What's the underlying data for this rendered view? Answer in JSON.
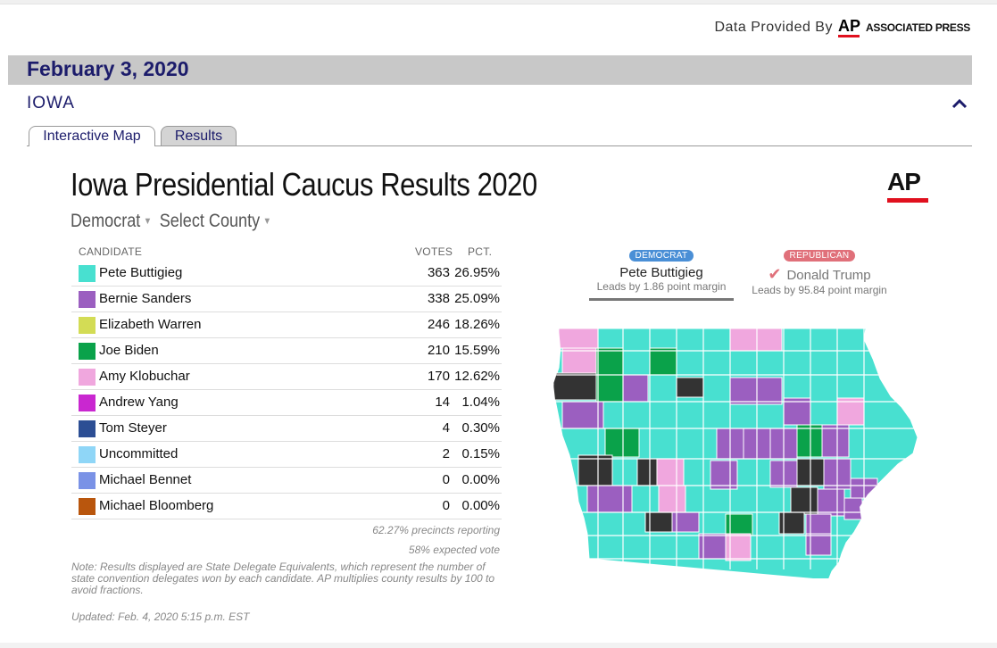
{
  "provider": {
    "label": "Data Provided By",
    "logo": "AP",
    "name": "ASSOCIATED PRESS"
  },
  "date_bar": {
    "date": "February 3, 2020"
  },
  "state": {
    "name": "IOWA",
    "collapse_icon": "chevron-up-icon"
  },
  "tabs": [
    {
      "label": "Interactive Map",
      "active": true
    },
    {
      "label": "Results",
      "active": false
    }
  ],
  "widget": {
    "title": "Iowa Presidential Caucus Results 2020",
    "logo": "AP",
    "party_select": "Democrat",
    "county_select": "Select County"
  },
  "table": {
    "headers": {
      "candidate": "CANDIDATE",
      "votes": "VOTES",
      "pct": "PCT."
    },
    "rows": [
      {
        "name": "Pete Buttigieg",
        "votes": "363",
        "pct": "26.95%",
        "color": "#48e0d0"
      },
      {
        "name": "Bernie Sanders",
        "votes": "338",
        "pct": "25.09%",
        "color": "#9b5fc0"
      },
      {
        "name": "Elizabeth Warren",
        "votes": "246",
        "pct": "18.26%",
        "color": "#d3dc55"
      },
      {
        "name": "Joe Biden",
        "votes": "210",
        "pct": "15.59%",
        "color": "#0aa24a"
      },
      {
        "name": "Amy Klobuchar",
        "votes": "170",
        "pct": "12.62%",
        "color": "#f0a7de"
      },
      {
        "name": "Andrew Yang",
        "votes": "14",
        "pct": "1.04%",
        "color": "#c927d0"
      },
      {
        "name": "Tom Steyer",
        "votes": "4",
        "pct": "0.30%",
        "color": "#2c4e94"
      },
      {
        "name": "Uncommitted",
        "votes": "2",
        "pct": "0.15%",
        "color": "#8fd6f7"
      },
      {
        "name": "Michael Bennet",
        "votes": "0",
        "pct": "0.00%",
        "color": "#7a92e6"
      },
      {
        "name": "Michael Bloomberg",
        "votes": "0",
        "pct": "0.00%",
        "color": "#b9560d"
      }
    ],
    "precincts": "62.27% precincts reporting",
    "expected": "58% expected vote"
  },
  "note": "Note: Results displayed are State Delegate Equivalents, which represent the number of state convention delegates won by each candidate. AP multiplies county results by 100 to avoid fractions.",
  "updated": "Updated: Feb. 4, 2020 5:15 p.m. EST",
  "leaders": {
    "democrat": {
      "party": "DEMOCRAT",
      "name": "Pete Buttigieg",
      "margin": "Leads by 1.86 point margin"
    },
    "republican": {
      "party": "REPUBLICAN",
      "name": "Donald Trump",
      "margin": "Leads by 95.84 point margin",
      "icon": "checkmark-icon"
    }
  },
  "map": {
    "state": "Iowa",
    "legend_colors": {
      "buttigieg": "#48e0d0",
      "sanders": "#9b5fc0",
      "biden": "#0aa24a",
      "klobuchar": "#f0a7de",
      "tie": "#333333"
    }
  }
}
